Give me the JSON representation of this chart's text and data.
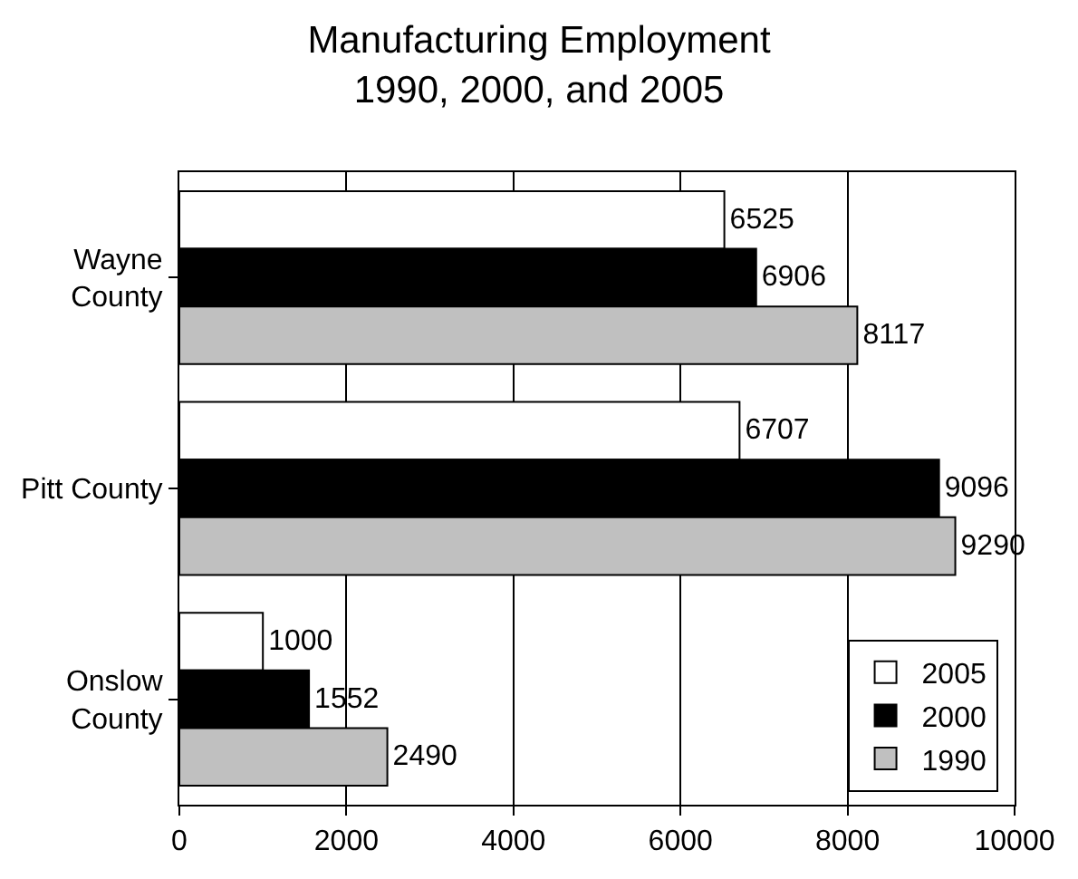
{
  "chart_data": {
    "type": "bar",
    "orientation": "horizontal",
    "title": "Manufacturing Employment\n1990, 2000, and 2005",
    "categories": [
      "Wayne\nCounty",
      "Pitt County",
      "Onslow\nCounty"
    ],
    "series": [
      {
        "name": "2005",
        "color": "#ffffff",
        "values": [
          6525,
          6707,
          1000
        ]
      },
      {
        "name": "2000",
        "color": "#000000",
        "values": [
          6906,
          9096,
          1552
        ]
      },
      {
        "name": "1990",
        "color": "#c0c0c0",
        "values": [
          8117,
          9290,
          2490
        ]
      }
    ],
    "xlim": [
      0,
      10000
    ],
    "xticks": [
      0,
      2000,
      4000,
      6000,
      8000,
      10000
    ],
    "grid": "x",
    "legend": "bottom right",
    "data_labels": true
  }
}
